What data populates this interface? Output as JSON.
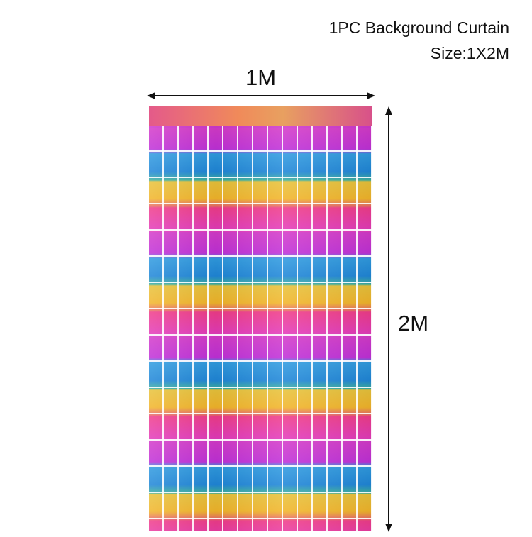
{
  "product": {
    "caption_line1": "1PC Background Curtain",
    "caption_line2": "Size:1X2M",
    "width_label": "1M",
    "height_label": "2M",
    "curtain_colors": [
      "#d43ac9",
      "#2f9be0",
      "#f2b52a",
      "#f03c8a"
    ]
  }
}
